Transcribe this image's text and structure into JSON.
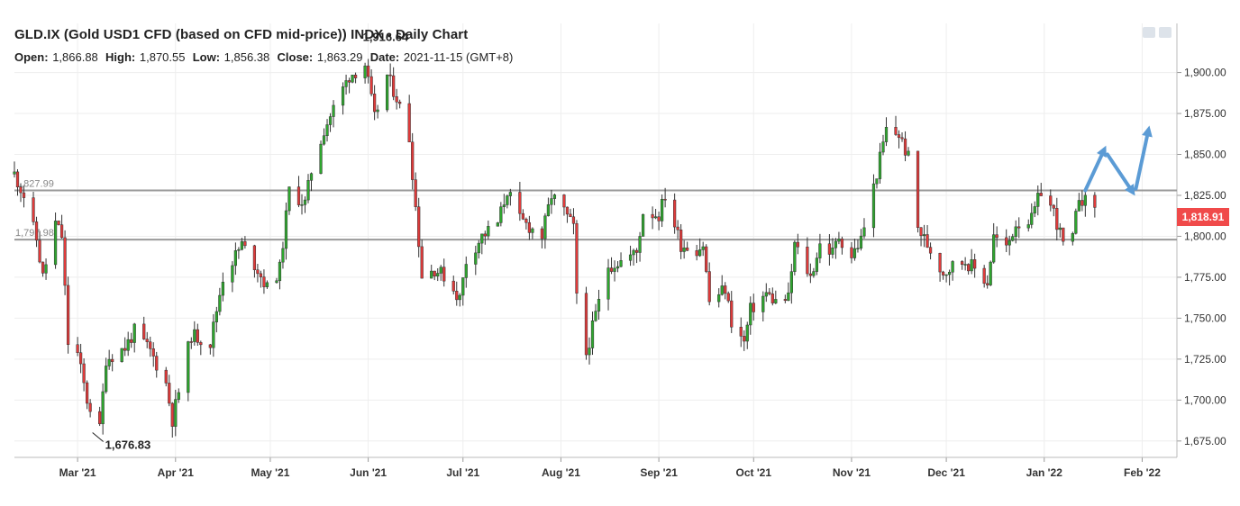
{
  "header": {
    "title": "GLD.IX (Gold USD1 CFD (based on CFD mid-price)) INDX - Daily Chart",
    "open_label": "Open:",
    "open": "1,866.88",
    "high_label": "High:",
    "high": "1,870.55",
    "low_label": "Low:",
    "low": "1,856.38",
    "close_label": "Close:",
    "close": "1,863.29",
    "date_label": "Date:",
    "date": "2021-11-15 (GMT+8)"
  },
  "toolbar": {
    "icons": [
      "image-export-icon",
      "print-icon"
    ]
  },
  "colors": {
    "up": "#2ea62e",
    "down": "#e03a3a",
    "wick": "#333333",
    "level": "#9a9a9a",
    "arrow": "#5b9bd5",
    "grid": "#eeeeee",
    "price_tag": "#f04a4a"
  },
  "price_tag": "1,818.91",
  "chart_data": {
    "type": "candlestick",
    "title": "GLD.IX (Gold USD1 CFD (based on CFD mid-price)) INDX - Daily Chart",
    "ylim": [
      1665,
      1930
    ],
    "x_range": [
      "2021-02-09",
      "2022-02-12"
    ],
    "x_ticks": [
      {
        "label": "Mar '21",
        "date": "2021-03-01"
      },
      {
        "label": "Apr '21",
        "date": "2021-04-01"
      },
      {
        "label": "May '21",
        "date": "2021-05-01"
      },
      {
        "label": "Jun '21",
        "date": "2021-06-01"
      },
      {
        "label": "Jul '21",
        "date": "2021-07-01"
      },
      {
        "label": "Aug '21",
        "date": "2021-08-01"
      },
      {
        "label": "Sep '21",
        "date": "2021-09-01"
      },
      {
        "label": "Oct '21",
        "date": "2021-10-01"
      },
      {
        "label": "Nov '21",
        "date": "2021-11-01"
      },
      {
        "label": "Dec '21",
        "date": "2021-12-01"
      },
      {
        "label": "Jan '22",
        "date": "2022-01-01"
      },
      {
        "label": "Feb '22",
        "date": "2022-02-01"
      }
    ],
    "y_ticks": [
      {
        "label": "1,675.00",
        "value": 1675
      },
      {
        "label": "1,700.00",
        "value": 1700
      },
      {
        "label": "1,725.00",
        "value": 1725
      },
      {
        "label": "1,750.00",
        "value": 1750
      },
      {
        "label": "1,775.00",
        "value": 1775
      },
      {
        "label": "1,800.00",
        "value": 1800
      },
      {
        "label": "1,825.00",
        "value": 1825
      },
      {
        "label": "1,850.00",
        "value": 1850
      },
      {
        "label": "1,875.00",
        "value": 1875
      },
      {
        "label": "1,900.00",
        "value": 1900
      }
    ],
    "horizontal_levels": [
      {
        "value": 1827.99,
        "label": "1,827.99"
      },
      {
        "value": 1797.98,
        "label": "1,797.98"
      }
    ],
    "annotations": [
      {
        "text": "1,916.64",
        "date": "2021-06-01",
        "value": 1916.64
      },
      {
        "text": "1,676.83",
        "date": "2021-03-08",
        "value": 1676.83
      }
    ],
    "last_price": {
      "text": "1,818.91",
      "value": 1818.91
    },
    "projection_arrows": [
      [
        [
          "2022-01-14",
          1828
        ],
        [
          "2022-01-20",
          1853
        ]
      ],
      [
        [
          "2022-01-21",
          1850
        ],
        [
          "2022-01-29",
          1827
        ]
      ],
      [
        [
          "2022-01-30",
          1829
        ],
        [
          "2022-02-03",
          1865
        ]
      ]
    ],
    "price_path": [
      [
        "2021-02-09",
        1838
      ],
      [
        "2021-02-12",
        1825
      ],
      [
        "2021-02-16",
        1798
      ],
      [
        "2021-02-18",
        1775
      ],
      [
        "2021-02-22",
        1808
      ],
      [
        "2021-02-24",
        1800
      ],
      [
        "2021-02-26",
        1735
      ],
      [
        "2021-03-01",
        1728
      ],
      [
        "2021-03-04",
        1700
      ],
      [
        "2021-03-08",
        1682
      ],
      [
        "2021-03-10",
        1725
      ],
      [
        "2021-03-16",
        1732
      ],
      [
        "2021-03-19",
        1742
      ],
      [
        "2021-03-24",
        1730
      ],
      [
        "2021-03-29",
        1710
      ],
      [
        "2021-03-31",
        1688
      ],
      [
        "2021-04-06",
        1740
      ],
      [
        "2021-04-12",
        1735
      ],
      [
        "2021-04-16",
        1775
      ],
      [
        "2021-04-22",
        1795
      ],
      [
        "2021-04-27",
        1780
      ],
      [
        "2021-04-30",
        1768
      ],
      [
        "2021-05-04",
        1780
      ],
      [
        "2021-05-07",
        1828
      ],
      [
        "2021-05-12",
        1820
      ],
      [
        "2021-05-14",
        1840
      ],
      [
        "2021-05-18",
        1865
      ],
      [
        "2021-05-21",
        1878
      ],
      [
        "2021-05-26",
        1898
      ],
      [
        "2021-05-31",
        1905
      ],
      [
        "2021-06-03",
        1872
      ],
      [
        "2021-06-07",
        1898
      ],
      [
        "2021-06-10",
        1885
      ],
      [
        "2021-06-14",
        1860
      ],
      [
        "2021-06-16",
        1818
      ],
      [
        "2021-06-18",
        1776
      ],
      [
        "2021-06-22",
        1780
      ],
      [
        "2021-06-25",
        1776
      ],
      [
        "2021-06-30",
        1762
      ],
      [
        "2021-07-02",
        1785
      ],
      [
        "2021-07-07",
        1800
      ],
      [
        "2021-07-12",
        1808
      ],
      [
        "2021-07-15",
        1828
      ],
      [
        "2021-07-19",
        1810
      ],
      [
        "2021-07-22",
        1806
      ],
      [
        "2021-07-26",
        1800
      ],
      [
        "2021-07-29",
        1825
      ],
      [
        "2021-08-02",
        1815
      ],
      [
        "2021-08-05",
        1805
      ],
      [
        "2021-08-06",
        1762
      ],
      [
        "2021-08-09",
        1728
      ],
      [
        "2021-08-12",
        1752
      ],
      [
        "2021-08-16",
        1782
      ],
      [
        "2021-08-20",
        1785
      ],
      [
        "2021-08-25",
        1790
      ],
      [
        "2021-08-27",
        1815
      ],
      [
        "2021-09-01",
        1813
      ],
      [
        "2021-09-03",
        1825
      ],
      [
        "2021-09-08",
        1795
      ],
      [
        "2021-09-13",
        1792
      ],
      [
        "2021-09-15",
        1795
      ],
      [
        "2021-09-17",
        1760
      ],
      [
        "2021-09-22",
        1768
      ],
      [
        "2021-09-24",
        1748
      ],
      [
        "2021-09-28",
        1735
      ],
      [
        "2021-09-30",
        1755
      ],
      [
        "2021-10-05",
        1765
      ],
      [
        "2021-10-08",
        1760
      ],
      [
        "2021-10-12",
        1762
      ],
      [
        "2021-10-14",
        1795
      ],
      [
        "2021-10-19",
        1775
      ],
      [
        "2021-10-22",
        1795
      ],
      [
        "2021-10-26",
        1790
      ],
      [
        "2021-10-28",
        1800
      ],
      [
        "2021-11-01",
        1788
      ],
      [
        "2021-11-04",
        1798
      ],
      [
        "2021-11-08",
        1830
      ],
      [
        "2021-11-12",
        1865
      ],
      [
        "2021-11-16",
        1862
      ],
      [
        "2021-11-19",
        1848
      ],
      [
        "2021-11-22",
        1805
      ],
      [
        "2021-11-25",
        1795
      ],
      [
        "2021-11-30",
        1778
      ],
      [
        "2021-12-03",
        1782
      ],
      [
        "2021-12-07",
        1785
      ],
      [
        "2021-12-10",
        1780
      ],
      [
        "2021-12-14",
        1772
      ],
      [
        "2021-12-16",
        1800
      ],
      [
        "2021-12-20",
        1792
      ],
      [
        "2021-12-23",
        1808
      ],
      [
        "2021-12-28",
        1810
      ],
      [
        "2021-12-31",
        1828
      ],
      [
        "2022-01-04",
        1815
      ],
      [
        "2022-01-07",
        1795
      ],
      [
        "2022-01-10",
        1798
      ],
      [
        "2022-01-12",
        1825
      ],
      [
        "2022-01-14",
        1821
      ],
      [
        "2022-01-17",
        1819
      ]
    ]
  }
}
